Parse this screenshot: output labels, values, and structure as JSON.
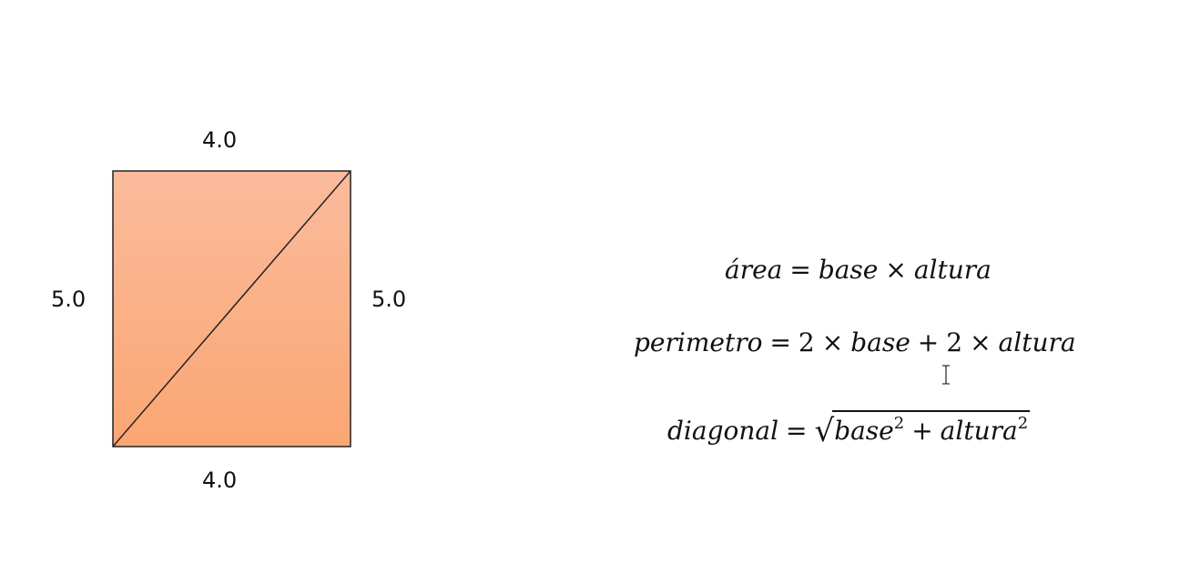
{
  "rectangle": {
    "top_label": "4.0",
    "bottom_label": "4.0",
    "left_label": "5.0",
    "right_label": "5.0",
    "fill_top_color": "#fbbb9c",
    "fill_bottom_color": "#fba673",
    "stroke_color": "#222222"
  },
  "formulas": {
    "area": {
      "lhs": "área",
      "eq": "=",
      "t1": "base",
      "times": "×",
      "t2": "altura"
    },
    "perimetro": {
      "lhs": "perimetro",
      "eq": "=",
      "c1": "2",
      "times1": "×",
      "t1": "base",
      "plus": "+",
      "c2": "2",
      "times2": "×",
      "t2": "altura"
    },
    "diagonal": {
      "lhs": "diagonal",
      "eq": "=",
      "root": "√",
      "t1": "base",
      "exp1": "2",
      "plus": "+",
      "t2": "altura",
      "exp2": "2"
    }
  },
  "cursor_icon": "text-cursor-icon"
}
